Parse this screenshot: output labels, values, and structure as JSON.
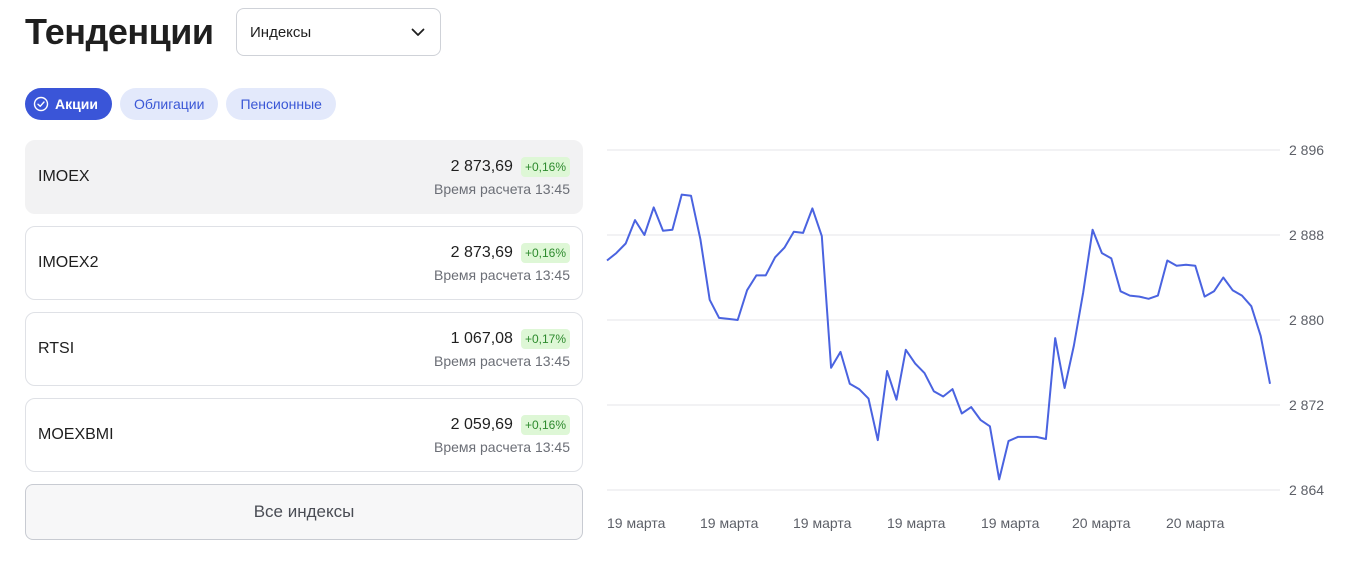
{
  "header": {
    "title": "Тенденции",
    "select_value": "Индексы"
  },
  "tabs": [
    {
      "label": "Акции",
      "active": true
    },
    {
      "label": "Облигации",
      "active": false
    },
    {
      "label": "Пенсионные",
      "active": false
    }
  ],
  "indices": [
    {
      "name": "IMOEX",
      "price": "2 873,69",
      "change": "+0,16%",
      "time": "Время расчета 13:45",
      "active": true
    },
    {
      "name": "IMOEX2",
      "price": "2 873,69",
      "change": "+0,16%",
      "time": "Время расчета 13:45",
      "active": false
    },
    {
      "name": "RTSI",
      "price": "1 067,08",
      "change": "+0,17%",
      "time": "Время расчета 13:45",
      "active": false
    },
    {
      "name": "MOEXBMI",
      "price": "2 059,69",
      "change": "+0,16%",
      "time": "Время расчета 13:45",
      "active": false
    }
  ],
  "all_button_label": "Все индексы",
  "colors": {
    "accent": "#3a55d8",
    "line": "#4a63e0",
    "badge_bg": "#def7d6",
    "badge_text": "#2e8b2e"
  },
  "chart_data": {
    "type": "line",
    "ylim": [
      2864,
      2896
    ],
    "yticks": [
      2896,
      2888,
      2880,
      2872,
      2864
    ],
    "ytick_labels": [
      "2 896",
      "2 888",
      "2 880",
      "2 872",
      "2 864"
    ],
    "xtick_labels": [
      "19 марта",
      "19 марта",
      "19 марта",
      "19 марта",
      "19 марта",
      "20 марта",
      "20 марта"
    ],
    "grid": true,
    "series": [
      {
        "values": [
          2885.6,
          2886.3,
          2887.2,
          2889.4,
          2888.0,
          2890.6,
          2888.4,
          2888.5,
          2891.8,
          2891.7,
          2887.6,
          2881.9,
          2880.2,
          2880.1,
          2880.0,
          2882.8,
          2884.2,
          2884.2,
          2885.9,
          2886.8,
          2888.3,
          2888.2,
          2890.5,
          2887.9,
          2875.5,
          2877.0,
          2874.0,
          2873.5,
          2872.6,
          2868.7,
          2875.2,
          2872.5,
          2877.2,
          2875.9,
          2875.0,
          2873.3,
          2872.8,
          2873.5,
          2871.2,
          2871.8,
          2870.6,
          2870.0,
          2865.0,
          2868.6,
          2869.0,
          2869.0,
          2869.0,
          2868.8,
          2878.3,
          2873.6,
          2877.6,
          2882.6,
          2888.5,
          2886.3,
          2885.8,
          2882.7,
          2882.3,
          2882.2,
          2882.0,
          2882.3,
          2885.6,
          2885.1,
          2885.2,
          2885.1,
          2882.2,
          2882.7,
          2884.0,
          2882.8,
          2882.3,
          2881.3,
          2878.5,
          2874.0
        ]
      }
    ]
  }
}
